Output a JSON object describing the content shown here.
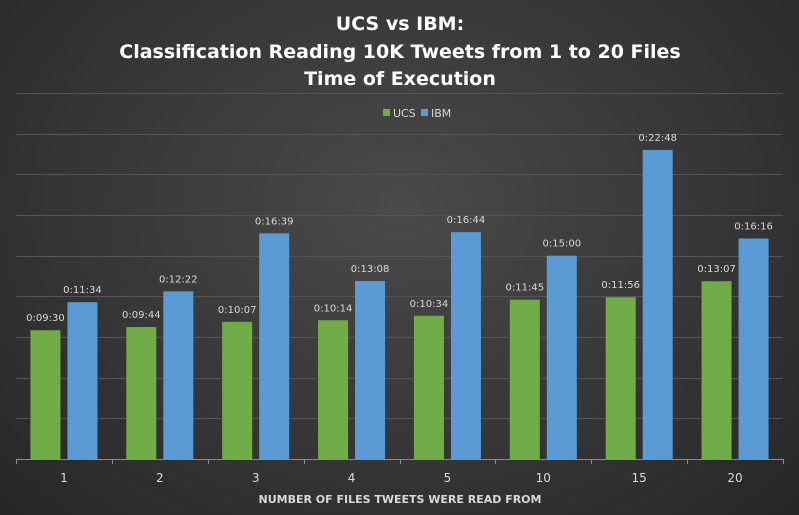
{
  "chart_data": {
    "type": "bar",
    "title_lines": [
      "UCS vs IBM:",
      "Classification  Reading  10K Tweets  from  1  to  20  Files",
      "Time  of  Execution"
    ],
    "xlabel": "NUMBER OF FILES TWEETS WERE READ FROM",
    "ylabel": "",
    "categories": [
      "1",
      "2",
      "3",
      "4",
      "5",
      "10",
      "15",
      "20"
    ],
    "series": [
      {
        "name": "UCS",
        "color": "#70ad47",
        "values_seconds": [
          570,
          584,
          607,
          614,
          634,
          705,
          716,
          787
        ],
        "labels": [
          "0:09:30",
          "0:09:44",
          "0:10:07",
          "0:10:14",
          "0:10:34",
          "0:11:45",
          "0:11:56",
          "0:13:07"
        ]
      },
      {
        "name": "IBM",
        "color": "#5b9bd5",
        "values_seconds": [
          694,
          742,
          999,
          788,
          1004,
          900,
          1368,
          976
        ],
        "labels": [
          "0:11:34",
          "0:12:22",
          "0:16:39",
          "0:13:08",
          "0:16:44",
          "0:15:00",
          "0:22:48",
          "0:16:16"
        ]
      }
    ],
    "ylim_seconds": [
      0,
      1620
    ],
    "y_gridline_step_seconds": 180,
    "y_tick_labels_shown": false,
    "legend_position": "top-center",
    "grid": true
  }
}
